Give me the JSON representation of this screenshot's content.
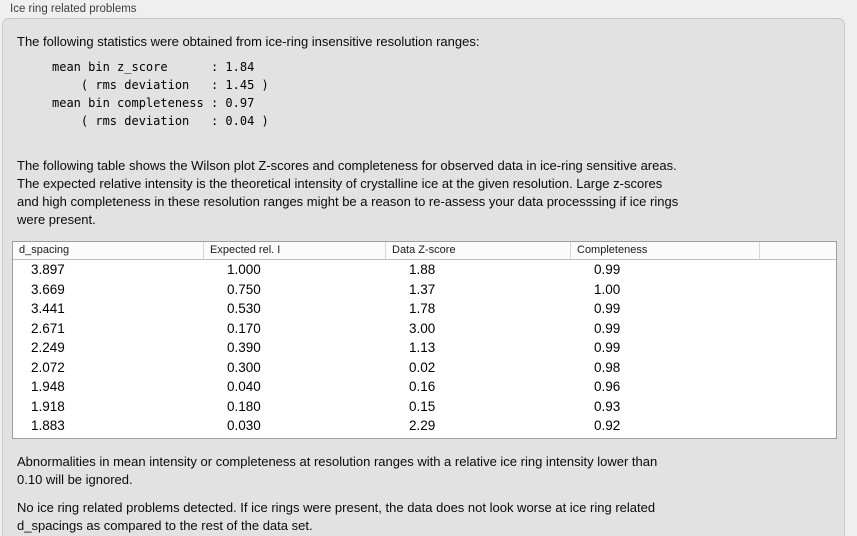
{
  "section": {
    "title": "Ice ring related problems"
  },
  "intro": "The following statistics were obtained from ice-ring insensitive resolution ranges:",
  "stats_block": {
    "lines": [
      "mean bin z_score      : 1.84",
      "    ( rms deviation   : 1.45 )",
      "mean bin completeness : 0.97",
      "    ( rms deviation   : 0.04 )"
    ]
  },
  "table_description": {
    "lines": [
      "The following table shows the Wilson plot Z-scores and completeness for observed data in ice-ring sensitive areas.",
      "The expected relative intensity is the theoretical intensity of crystalline ice at the given resolution. Large z-scores",
      "and high completeness in these resolution ranges might be a reason to re-assess your data processsing if ice rings",
      "were present."
    ]
  },
  "table": {
    "columns": [
      "d_spacing",
      "Expected rel. I",
      "Data Z-score",
      "Completeness",
      ""
    ],
    "rows": [
      [
        "3.897",
        "1.000",
        "1.88",
        "0.99"
      ],
      [
        "3.669",
        "0.750",
        "1.37",
        "1.00"
      ],
      [
        "3.441",
        "0.530",
        "1.78",
        "0.99"
      ],
      [
        "2.671",
        "0.170",
        "3.00",
        "0.99"
      ],
      [
        "2.249",
        "0.390",
        "1.13",
        "0.99"
      ],
      [
        "2.072",
        "0.300",
        "0.02",
        "0.98"
      ],
      [
        "1.948",
        "0.040",
        "0.16",
        "0.96"
      ],
      [
        "1.918",
        "0.180",
        "0.15",
        "0.93"
      ],
      [
        "1.883",
        "0.030",
        "2.29",
        "0.92"
      ]
    ]
  },
  "ignore_note": {
    "lines": [
      "Abnormalities in mean intensity or completeness at resolution ranges with a relative ice ring intensity lower than",
      "0.10 will be ignored."
    ]
  },
  "conclusion": {
    "lines": [
      "No ice ring related problems detected. If ice rings were present, the data does not look worse at ice ring related",
      "d_spacings as compared to the rest of the data set."
    ]
  },
  "colors": {
    "page_background": "#efefef",
    "panel_background": "#e2e2e2",
    "panel_border": "#cccccc",
    "table_background": "#ffffff",
    "table_border": "#9e9e9e",
    "header_background": "#fbfbfb",
    "text": "#0a0a0a",
    "label_text": "#3e3e3e"
  }
}
